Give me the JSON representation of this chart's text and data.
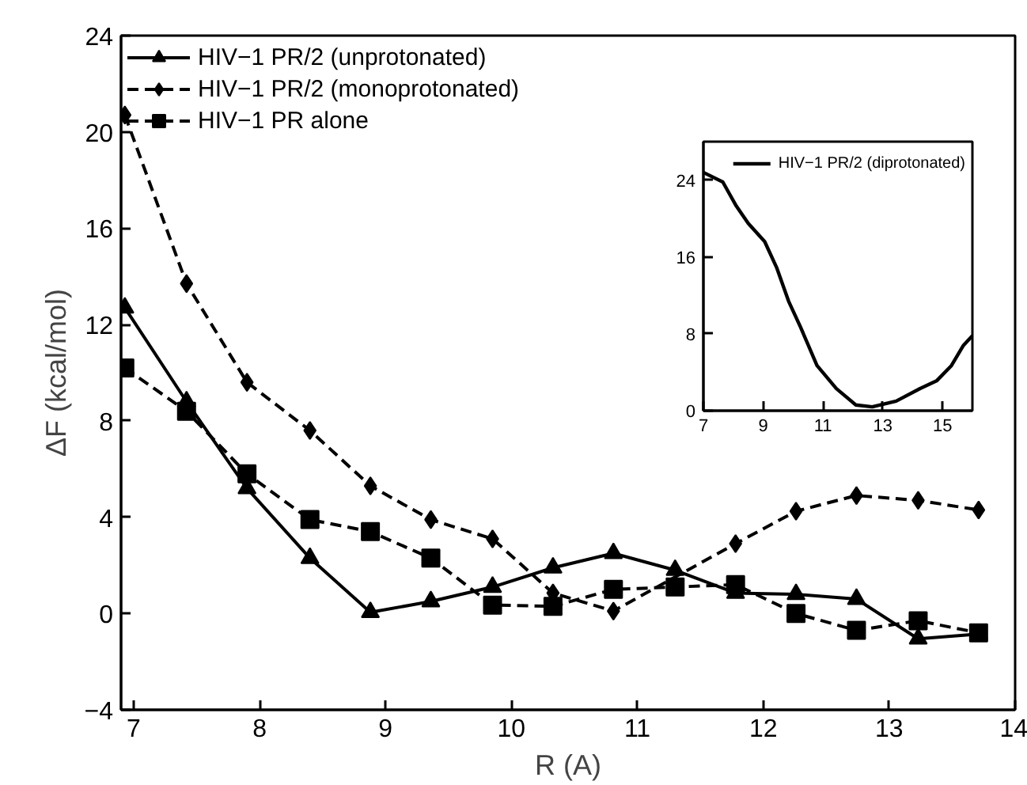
{
  "chart_data": [
    {
      "type": "line",
      "xlabel": "R (A)",
      "ylabel": "ΔF (kcal/mol)",
      "xlim": [
        6.9,
        14
      ],
      "ylim": [
        -4,
        24
      ],
      "xticks": [
        7,
        8,
        9,
        10,
        11,
        12,
        13,
        14
      ],
      "yticks": [
        {
          "value": -4,
          "label": "−4"
        },
        0,
        4,
        8,
        12,
        16,
        20,
        24
      ],
      "grid": false,
      "legend": "top left",
      "series": [
        {
          "name": "HIV−1 PR/2 (unprotonated)",
          "color": "#000000",
          "marker": "triangle",
          "line_style": "solid",
          "x": [
            6.93,
            7.42,
            7.9,
            8.4,
            8.88,
            9.36,
            9.85,
            10.33,
            10.81,
            11.3,
            11.78,
            12.26,
            12.74,
            13.23,
            13.71
          ],
          "values": [
            12.7,
            8.8,
            5.2,
            2.3,
            0.05,
            0.5,
            1.1,
            1.9,
            2.5,
            1.8,
            0.85,
            0.8,
            0.6,
            -1.05,
            -0.85
          ]
        },
        {
          "name": "HIV−1 PR/2 (monoprotonated)",
          "color": "#000000",
          "marker": "diamond",
          "line_style": "dashed",
          "x": [
            6.93,
            7.42,
            7.9,
            8.4,
            8.88,
            9.36,
            9.85,
            10.33,
            10.81,
            11.78,
            12.26,
            12.74,
            13.23,
            13.71
          ],
          "values": [
            20.7,
            13.7,
            9.6,
            7.6,
            5.3,
            3.9,
            3.1,
            0.85,
            0.1,
            2.9,
            4.25,
            4.9,
            4.7,
            4.3
          ]
        },
        {
          "name": "HIV−1 PR alone",
          "color": "#000000",
          "marker": "square",
          "line_style": "dashed",
          "x": [
            6.93,
            7.42,
            7.9,
            8.4,
            8.88,
            9.36,
            9.85,
            10.33,
            10.81,
            11.3,
            11.78,
            12.26,
            12.74,
            13.23,
            13.71
          ],
          "values": [
            10.2,
            8.4,
            5.8,
            3.9,
            3.4,
            2.3,
            0.35,
            0.3,
            1.0,
            1.1,
            1.2,
            0.0,
            -0.7,
            -0.3,
            -0.8
          ]
        }
      ]
    },
    {
      "type": "line",
      "xlim": [
        7,
        16
      ],
      "ylim": [
        0,
        28
      ],
      "xticks": [
        7,
        9,
        11,
        13,
        15
      ],
      "yticks": [
        0,
        8,
        16,
        24
      ],
      "grid": false,
      "legend": "top right",
      "series": [
        {
          "name": "HIV−1 PR/2 (diprotonated)",
          "color": "#000000",
          "marker": "none",
          "line_style": "solid",
          "x": [
            7.0,
            7.65,
            8.1,
            8.5,
            9.05,
            9.45,
            9.85,
            10.25,
            10.8,
            11.45,
            12.1,
            12.65,
            13.45,
            14.25,
            14.8,
            15.3,
            15.7,
            16.0
          ],
          "values": [
            24.8,
            23.8,
            21.3,
            19.5,
            17.6,
            14.9,
            11.4,
            8.7,
            4.7,
            2.3,
            0.6,
            0.4,
            1.0,
            2.3,
            3.1,
            4.7,
            6.8,
            7.8
          ]
        }
      ]
    }
  ]
}
